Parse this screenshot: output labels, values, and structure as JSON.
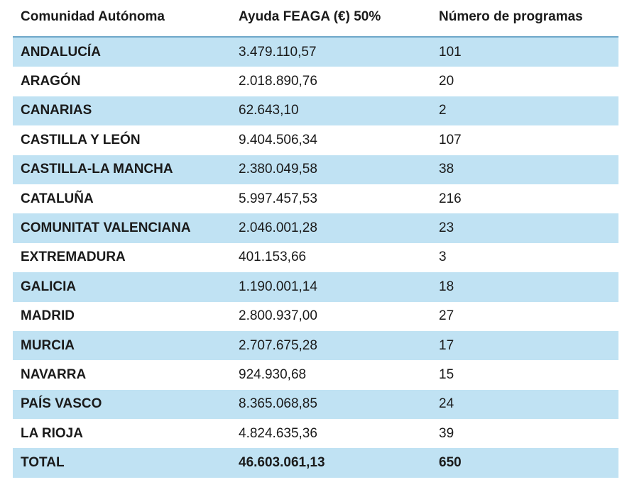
{
  "headers": {
    "region": "Comunidad Autónoma",
    "aid": "Ayuda FEAGA (€) 50%",
    "programs": "Número de programas"
  },
  "rows": [
    {
      "region": "ANDALUCÍA",
      "aid": "3.479.110,57",
      "programs": "101"
    },
    {
      "region": "ARAGÓN",
      "aid": "2.018.890,76",
      "programs": "20"
    },
    {
      "region": "CANARIAS",
      "aid": "62.643,10",
      "programs": "2"
    },
    {
      "region": "CASTILLA Y LEÓN",
      "aid": "9.404.506,34",
      "programs": "107"
    },
    {
      "region": "CASTILLA-LA MANCHA",
      "aid": "2.380.049,58",
      "programs": "38"
    },
    {
      "region": "CATALUÑA",
      "aid": "5.997.457,53",
      "programs": "216"
    },
    {
      "region": "COMUNITAT VALENCIANA",
      "aid": "2.046.001,28",
      "programs": "23"
    },
    {
      "region": "EXTREMADURA",
      "aid": "401.153,66",
      "programs": "3"
    },
    {
      "region": "GALICIA",
      "aid": "1.190.001,14",
      "programs": "18"
    },
    {
      "region": "MADRID",
      "aid": "2.800.937,00",
      "programs": "27"
    },
    {
      "region": "MURCIA",
      "aid": "2.707.675,28",
      "programs": "17"
    },
    {
      "region": "NAVARRA",
      "aid": "924.930,68",
      "programs": "15"
    },
    {
      "region": "PAÍS VASCO",
      "aid": "8.365.068,85",
      "programs": "24"
    },
    {
      "region": "LA RIOJA",
      "aid": "4.824.635,36",
      "programs": "39"
    }
  ],
  "total": {
    "region": "TOTAL",
    "aid": "46.603.061,13",
    "programs": "650"
  },
  "colors": {
    "shaded_row": "#c0e2f3",
    "header_rule": "#6fa8c9"
  }
}
